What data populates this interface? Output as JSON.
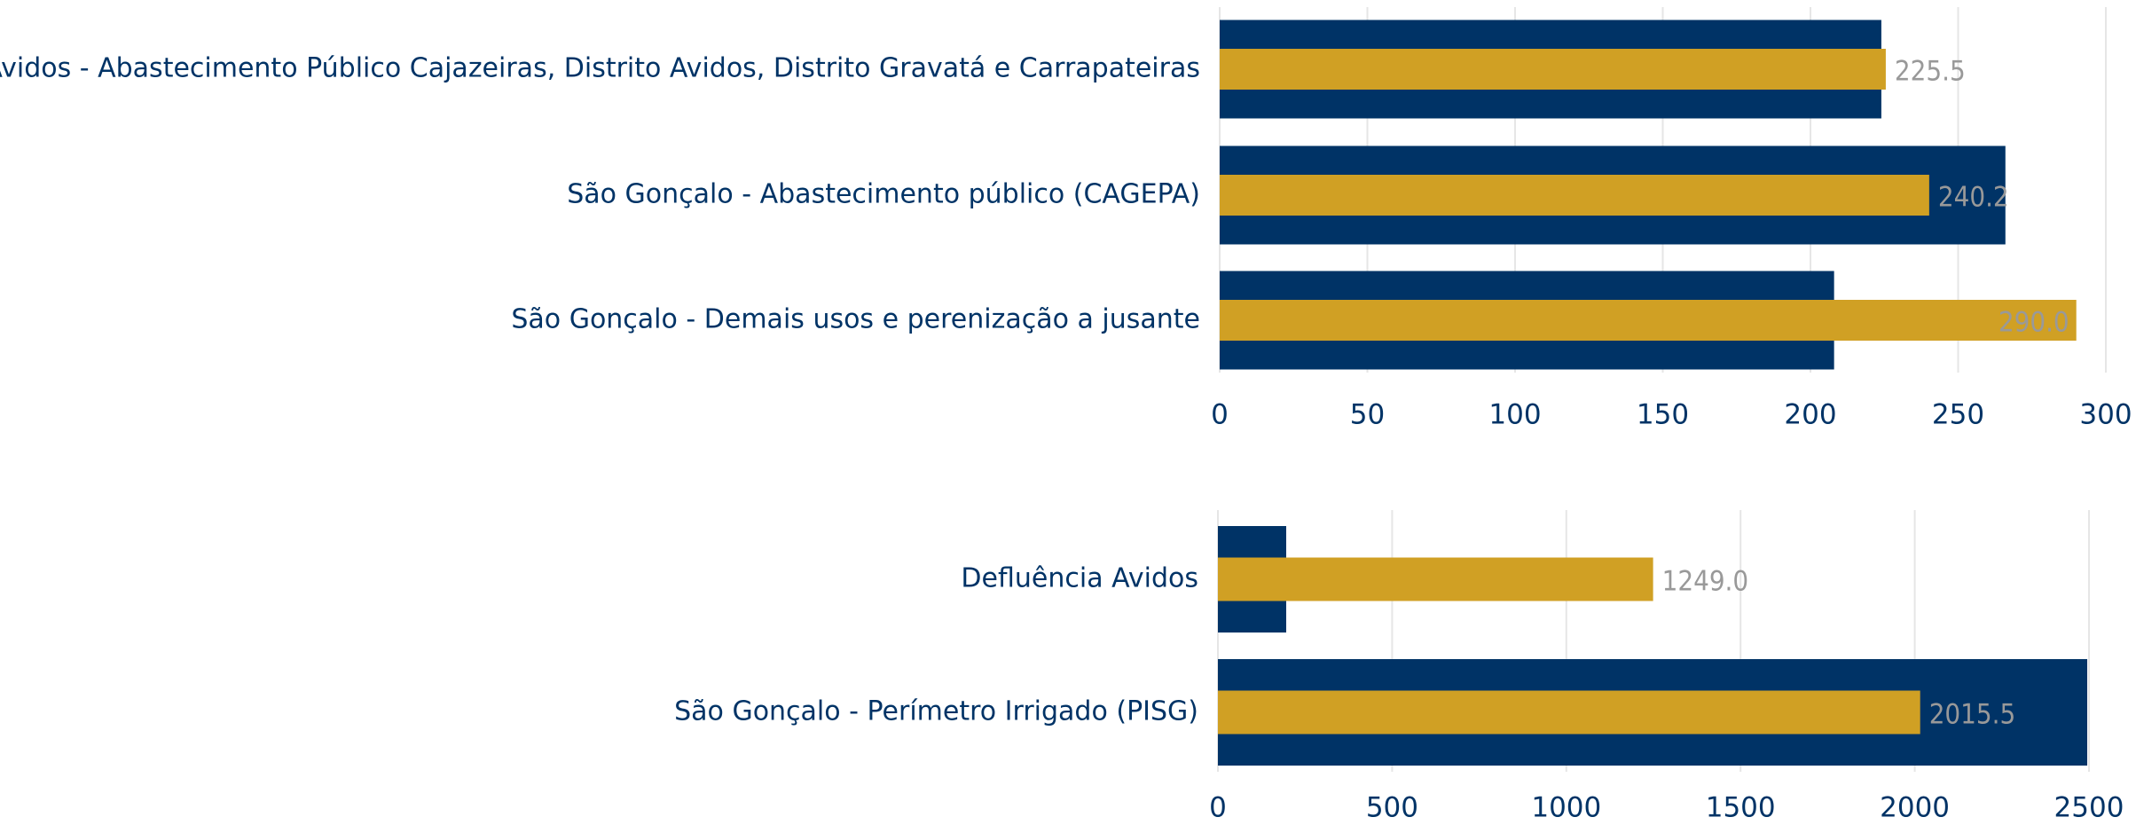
{
  "chart_data": [
    {
      "type": "bar",
      "orientation": "horizontal",
      "categories": [
        "Eng. Avidos - Abastecimento Público Cajazeiras, Distrito Avidos, Distrito Gravatá e Carrapateiras",
        "São Gonçalo - Abastecimento público (CAGEPA)",
        "São Gonçalo - Demais usos e perenização a jusante"
      ],
      "series": [
        {
          "color": "#003366",
          "values": [
            224,
            266,
            208
          ]
        },
        {
          "color": "#d0a024",
          "values": [
            225.5,
            240.2,
            290.0
          ],
          "value_labels": [
            "225.5",
            "240.2",
            "290.0"
          ]
        }
      ],
      "xlim": [
        0,
        300
      ],
      "xticks": [
        0,
        50,
        100,
        150,
        200,
        250,
        300
      ],
      "grid": true
    },
    {
      "type": "bar",
      "orientation": "horizontal",
      "categories": [
        "Defluência Avidos",
        "São Gonçalo - Perímetro Irrigado (PISG)"
      ],
      "series": [
        {
          "color": "#003366",
          "values": [
            196,
            2495
          ]
        },
        {
          "color": "#d0a024",
          "values": [
            1249.0,
            2015.5
          ],
          "value_labels": [
            "1249.0",
            "2015.5"
          ]
        }
      ],
      "xlim": [
        0,
        2500
      ],
      "xticks": [
        0,
        500,
        1000,
        1500,
        2000,
        2500
      ],
      "grid": true
    }
  ]
}
